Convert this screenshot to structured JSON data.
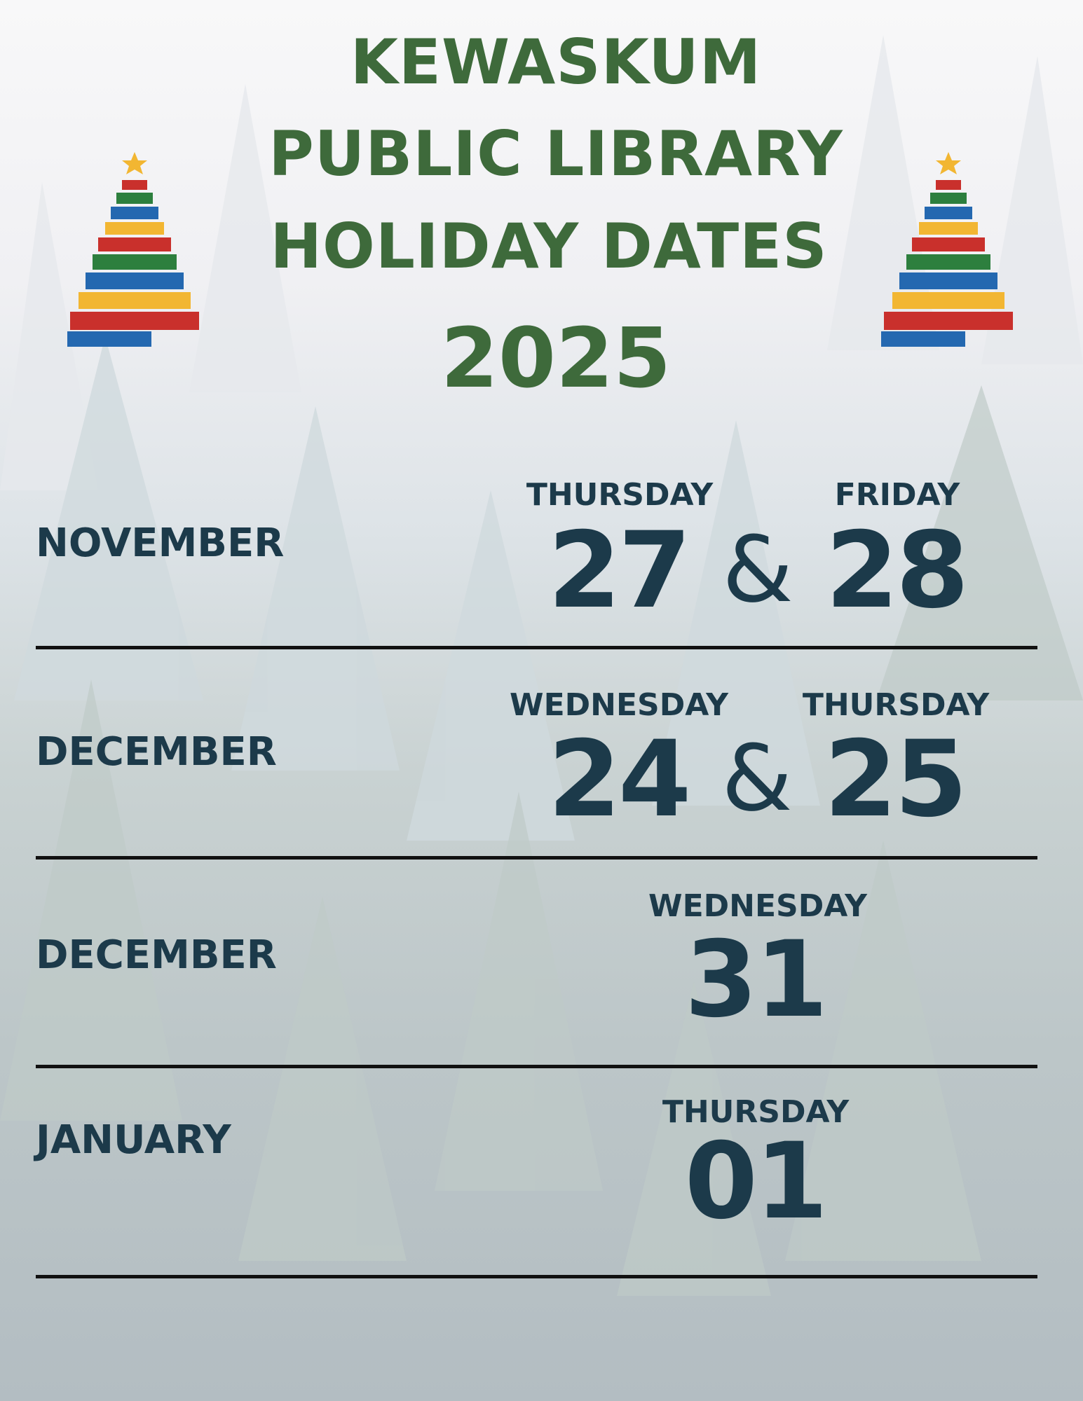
{
  "header": {
    "title_lines": [
      "KEWASKUM",
      "PUBLIC LIBRARY",
      "HOLIDAY DATES"
    ],
    "year": "2025"
  },
  "colors": {
    "title": "#3e6a3b",
    "text": "#1c3a4a"
  },
  "decorations": {
    "left_icon": "book-christmas-tree-icon",
    "right_icon": "book-christmas-tree-icon"
  },
  "rows": [
    {
      "month": "NOVEMBER",
      "days": [
        {
          "weekday": "THURSDAY",
          "date": "27"
        },
        {
          "weekday": "FRIDAY",
          "date": "28"
        }
      ],
      "joiner": "&"
    },
    {
      "month": "DECEMBER",
      "days": [
        {
          "weekday": "WEDNESDAY",
          "date": "24"
        },
        {
          "weekday": "THURSDAY",
          "date": "25"
        }
      ],
      "joiner": "&"
    },
    {
      "month": "DECEMBER",
      "days": [
        {
          "weekday": "WEDNESDAY",
          "date": "31"
        }
      ]
    },
    {
      "month": "JANUARY",
      "days": [
        {
          "weekday": "THURSDAY",
          "date": "01"
        }
      ]
    }
  ]
}
